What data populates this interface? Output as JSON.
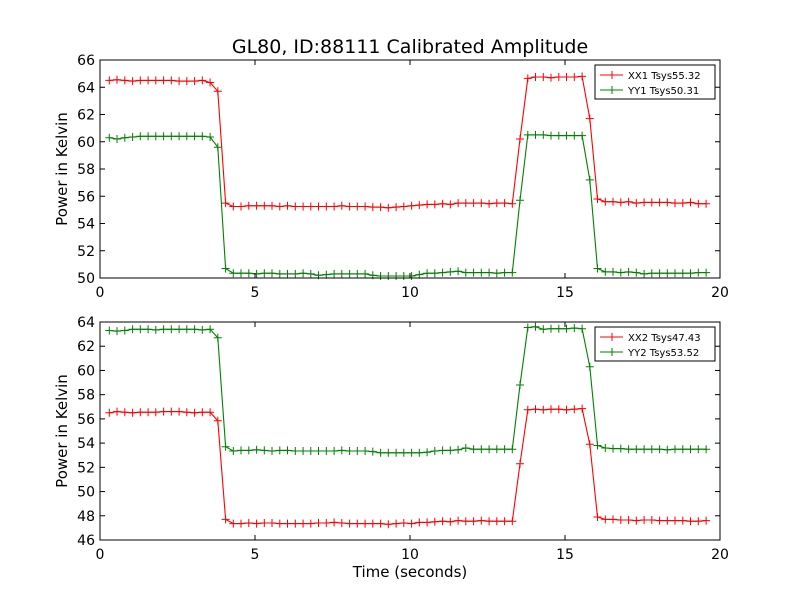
{
  "figure": {
    "title": "GL80, ID:88111 Calibrated Amplitude",
    "xlabel": "Time (seconds)"
  },
  "chart_data": [
    {
      "type": "line",
      "title": "GL80, ID:88111 Calibrated Amplitude",
      "xlabel": "",
      "ylabel": "Power in Kelvin",
      "xlim": [
        0,
        20
      ],
      "ylim": [
        50,
        66
      ],
      "xticks": [
        0,
        5,
        10,
        15,
        20
      ],
      "yticks": [
        50,
        52,
        54,
        56,
        58,
        60,
        62,
        64,
        66
      ],
      "grid": false,
      "legend": "top-right",
      "x": [
        0.3,
        0.55,
        0.8,
        1.05,
        1.3,
        1.55,
        1.8,
        2.05,
        2.3,
        2.55,
        2.8,
        3.05,
        3.3,
        3.55,
        3.8,
        4.05,
        4.3,
        4.55,
        4.8,
        5.05,
        5.3,
        5.55,
        5.8,
        6.05,
        6.3,
        6.55,
        6.8,
        7.05,
        7.3,
        7.55,
        7.8,
        8.05,
        8.3,
        8.55,
        8.8,
        9.05,
        9.3,
        9.55,
        9.8,
        10.05,
        10.3,
        10.55,
        10.8,
        11.05,
        11.3,
        11.55,
        11.8,
        12.05,
        12.3,
        12.55,
        12.8,
        13.05,
        13.3,
        13.55,
        13.8,
        14.05,
        14.3,
        14.55,
        14.8,
        15.05,
        15.3,
        15.55,
        15.8,
        16.05,
        16.3,
        16.55,
        16.8,
        17.05,
        17.3,
        17.55,
        17.8,
        18.05,
        18.3,
        18.55,
        18.8,
        19.05,
        19.3,
        19.55
      ],
      "series": [
        {
          "name": "XX1 Tsys55.32",
          "color": "#ff0000",
          "values": [
            64.5,
            64.55,
            64.5,
            64.45,
            64.5,
            64.5,
            64.5,
            64.5,
            64.5,
            64.45,
            64.45,
            64.45,
            64.5,
            64.35,
            63.7,
            55.5,
            55.25,
            55.25,
            55.3,
            55.3,
            55.3,
            55.3,
            55.25,
            55.3,
            55.25,
            55.25,
            55.25,
            55.25,
            55.25,
            55.25,
            55.3,
            55.25,
            55.25,
            55.25,
            55.2,
            55.2,
            55.15,
            55.2,
            55.25,
            55.3,
            55.35,
            55.4,
            55.4,
            55.45,
            55.4,
            55.5,
            55.5,
            55.5,
            55.5,
            55.45,
            55.5,
            55.5,
            55.45,
            60.2,
            64.65,
            64.75,
            64.75,
            64.7,
            64.75,
            64.75,
            64.75,
            64.8,
            61.7,
            55.8,
            55.6,
            55.6,
            55.55,
            55.6,
            55.5,
            55.55,
            55.55,
            55.55,
            55.55,
            55.5,
            55.5,
            55.55,
            55.45,
            55.45
          ]
        },
        {
          "name": "YY1 Tsys50.31",
          "color": "#008000",
          "values": [
            60.3,
            60.2,
            60.3,
            60.35,
            60.4,
            60.4,
            60.4,
            60.4,
            60.4,
            60.4,
            60.4,
            60.4,
            60.4,
            60.35,
            59.6,
            50.7,
            50.35,
            50.35,
            50.35,
            50.3,
            50.35,
            50.35,
            50.3,
            50.3,
            50.3,
            50.35,
            50.3,
            50.2,
            50.25,
            50.3,
            50.3,
            50.3,
            50.3,
            50.3,
            50.2,
            50.15,
            50.15,
            50.15,
            50.15,
            50.15,
            50.25,
            50.35,
            50.35,
            50.4,
            50.45,
            50.5,
            50.4,
            50.4,
            50.4,
            50.4,
            50.35,
            50.4,
            50.4,
            55.7,
            60.5,
            60.5,
            60.5,
            60.45,
            60.45,
            60.45,
            60.45,
            60.45,
            57.2,
            50.7,
            50.45,
            50.45,
            50.4,
            50.45,
            50.4,
            50.3,
            50.35,
            50.35,
            50.35,
            50.35,
            50.35,
            50.35,
            50.4,
            50.4
          ]
        }
      ]
    },
    {
      "type": "line",
      "title": "",
      "xlabel": "Time (seconds)",
      "ylabel": "Power in Kelvin",
      "xlim": [
        0,
        20
      ],
      "ylim": [
        46,
        64
      ],
      "xticks": [
        0,
        5,
        10,
        15,
        20
      ],
      "yticks": [
        46,
        48,
        50,
        52,
        54,
        56,
        58,
        60,
        62,
        64
      ],
      "grid": false,
      "legend": "top-right",
      "x": [
        0.3,
        0.55,
        0.8,
        1.05,
        1.3,
        1.55,
        1.8,
        2.05,
        2.3,
        2.55,
        2.8,
        3.05,
        3.3,
        3.55,
        3.8,
        4.05,
        4.3,
        4.55,
        4.8,
        5.05,
        5.3,
        5.55,
        5.8,
        6.05,
        6.3,
        6.55,
        6.8,
        7.05,
        7.3,
        7.55,
        7.8,
        8.05,
        8.3,
        8.55,
        8.8,
        9.05,
        9.3,
        9.55,
        9.8,
        10.05,
        10.3,
        10.55,
        10.8,
        11.05,
        11.3,
        11.55,
        11.8,
        12.05,
        12.3,
        12.55,
        12.8,
        13.05,
        13.3,
        13.55,
        13.8,
        14.05,
        14.3,
        14.55,
        14.8,
        15.05,
        15.3,
        15.55,
        15.8,
        16.05,
        16.3,
        16.55,
        16.8,
        17.05,
        17.3,
        17.55,
        17.8,
        18.05,
        18.3,
        18.55,
        18.8,
        19.05,
        19.3,
        19.55
      ],
      "series": [
        {
          "name": "XX2 Tsys47.43",
          "color": "#ff0000",
          "values": [
            56.5,
            56.6,
            56.55,
            56.5,
            56.55,
            56.55,
            56.55,
            56.6,
            56.6,
            56.6,
            56.55,
            56.5,
            56.55,
            56.55,
            55.85,
            47.7,
            47.35,
            47.35,
            47.4,
            47.35,
            47.4,
            47.4,
            47.35,
            47.35,
            47.35,
            47.35,
            47.35,
            47.4,
            47.4,
            47.45,
            47.4,
            47.35,
            47.35,
            47.35,
            47.35,
            47.35,
            47.3,
            47.35,
            47.4,
            47.35,
            47.45,
            47.45,
            47.5,
            47.55,
            47.5,
            47.6,
            47.55,
            47.55,
            47.6,
            47.55,
            47.55,
            47.55,
            47.55,
            52.3,
            56.75,
            56.8,
            56.75,
            56.8,
            56.8,
            56.75,
            56.8,
            56.85,
            53.9,
            47.9,
            47.7,
            47.7,
            47.65,
            47.65,
            47.6,
            47.65,
            47.65,
            47.6,
            47.6,
            47.6,
            47.6,
            47.55,
            47.55,
            47.6
          ]
        },
        {
          "name": "YY2 Tsys53.52",
          "color": "#008000",
          "values": [
            63.3,
            63.25,
            63.3,
            63.4,
            63.4,
            63.4,
            63.35,
            63.4,
            63.4,
            63.4,
            63.4,
            63.4,
            63.35,
            63.4,
            62.7,
            53.7,
            53.35,
            53.4,
            53.4,
            53.45,
            53.4,
            53.35,
            53.4,
            53.4,
            53.35,
            53.35,
            53.35,
            53.35,
            53.35,
            53.35,
            53.4,
            53.35,
            53.35,
            53.35,
            53.3,
            53.2,
            53.2,
            53.2,
            53.2,
            53.2,
            53.2,
            53.25,
            53.35,
            53.4,
            53.4,
            53.45,
            53.6,
            53.5,
            53.5,
            53.5,
            53.5,
            53.5,
            53.5,
            58.8,
            63.55,
            63.6,
            63.4,
            63.45,
            63.45,
            63.45,
            63.5,
            63.45,
            60.3,
            53.8,
            53.6,
            53.55,
            53.55,
            53.5,
            53.5,
            53.5,
            53.5,
            53.5,
            53.45,
            53.5,
            53.5,
            53.5,
            53.5,
            53.5
          ]
        }
      ]
    }
  ]
}
